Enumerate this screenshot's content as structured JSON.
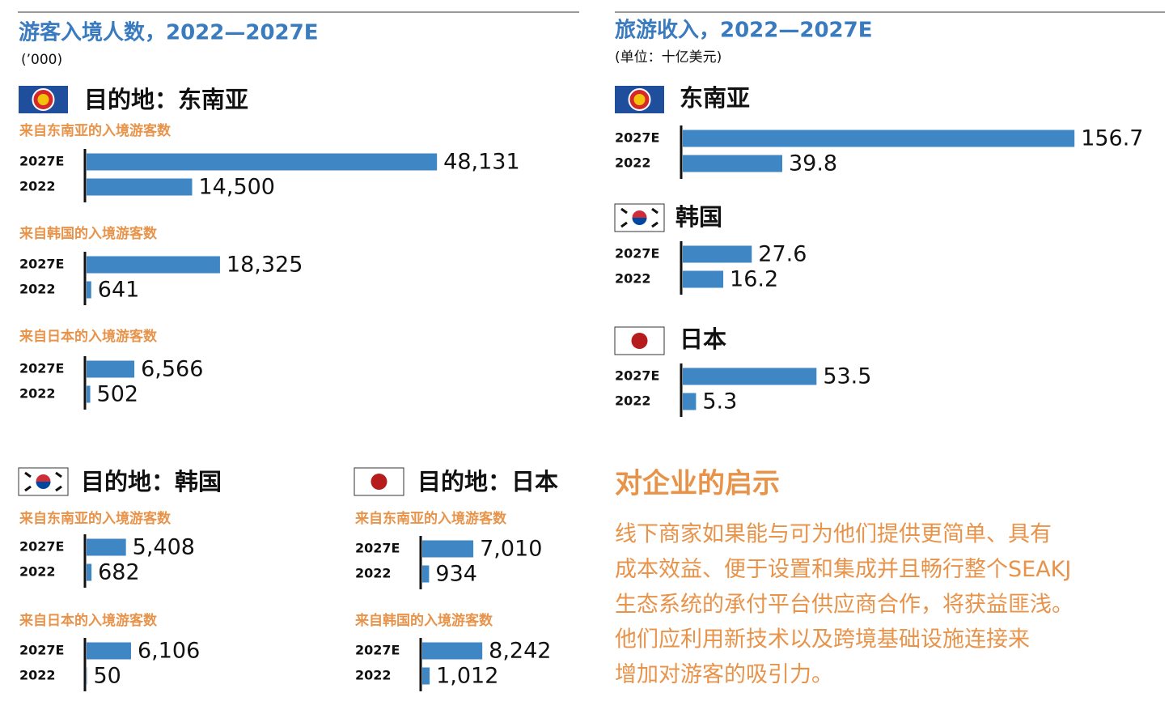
{
  "inbound": {
    "title": "游客入境人数，2022—2027E",
    "unit": "(’000)",
    "destinations": [
      "目的地：东南亚",
      "目的地：韩国",
      "目的地：日本"
    ]
  },
  "revenue": {
    "title": "旅游收入，2022—2027E",
    "unit": "(单位：十亿美元)"
  },
  "chart_data": [
    {
      "type": "bar",
      "title": "来自东南亚的入境游客数",
      "categories": [
        "2027E",
        "2022"
      ],
      "values": [
        48131,
        14500
      ],
      "value_labels": [
        "48,131",
        "14,500"
      ],
      "color": "#3f86c4"
    },
    {
      "type": "bar",
      "title": "来自韩国的入境游客数",
      "categories": [
        "2027E",
        "2022"
      ],
      "values": [
        18325,
        641
      ],
      "value_labels": [
        "18,325",
        "641"
      ],
      "color": "#3f86c4"
    },
    {
      "type": "bar",
      "title": "来自日本的入境游客数",
      "categories": [
        "2027E",
        "2022"
      ],
      "values": [
        6566,
        502
      ],
      "value_labels": [
        "6,566",
        "502"
      ],
      "color": "#3f86c4"
    },
    {
      "type": "bar",
      "title": "来自东南亚的入境游客数",
      "categories": [
        "2027E",
        "2022"
      ],
      "values": [
        5408,
        682
      ],
      "value_labels": [
        "5,408",
        "682"
      ],
      "color": "#3f86c4"
    },
    {
      "type": "bar",
      "title": "来自日本的入境游客数",
      "categories": [
        "2027E",
        "2022"
      ],
      "values": [
        6106,
        50
      ],
      "value_labels": [
        "6,106",
        "50"
      ],
      "color": "#3f86c4"
    },
    {
      "type": "bar",
      "title": "来自东南亚的入境游客数",
      "categories": [
        "2027E",
        "2022"
      ],
      "values": [
        7010,
        934
      ],
      "value_labels": [
        "7,010",
        "934"
      ],
      "color": "#3f86c4"
    },
    {
      "type": "bar",
      "title": "来自韩国的入境游客数",
      "categories": [
        "2027E",
        "2022"
      ],
      "values": [
        8242,
        1012
      ],
      "value_labels": [
        "8,242",
        "1,012"
      ],
      "color": "#3f86c4"
    },
    {
      "type": "bar",
      "title": "东南亚",
      "categories": [
        "2027E",
        "2022"
      ],
      "values": [
        156.7,
        39.8
      ],
      "color": "#3f86c4"
    },
    {
      "type": "bar",
      "title": "韩国",
      "categories": [
        "2027E",
        "2022"
      ],
      "values": [
        27.6,
        16.2
      ],
      "color": "#3f86c4"
    },
    {
      "type": "bar",
      "title": "日本",
      "categories": [
        "2027E",
        "2022"
      ],
      "values": [
        53.5,
        5.3
      ],
      "color": "#3f86c4"
    }
  ],
  "insight": {
    "title": "对企业的启示",
    "lines": [
      "线下商家如果能与可为他们提供更简单、具有",
      "成本效益、便于设置和集成并且畅行整个SEAKJ",
      "生态系统的承付平台供应商合作，将获益匪浅。",
      " 他们应利用新技术以及跨境基础设施连接来",
      "增加对游客的吸引力。"
    ]
  }
}
